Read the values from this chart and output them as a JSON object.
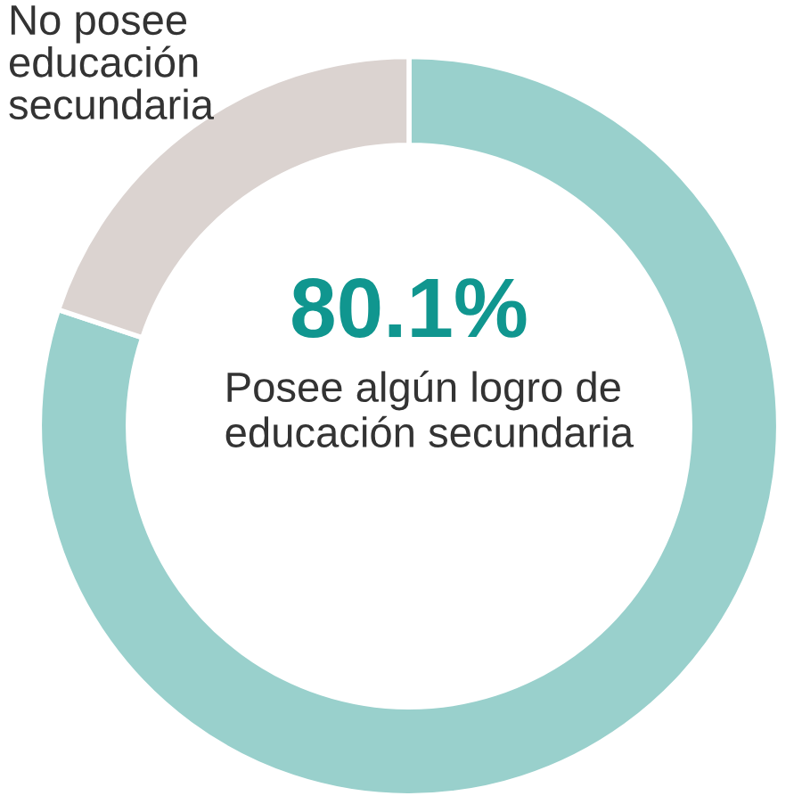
{
  "chart_data": {
    "type": "donut",
    "categories": [
      "Posee algún logro de educación secundaria",
      "No posee educación secundaria"
    ],
    "values": [
      80.1,
      19.9
    ],
    "colors": [
      "#99d0cc",
      "#dbd3d0"
    ],
    "value_labels": [
      "80.1%",
      null
    ]
  }
}
